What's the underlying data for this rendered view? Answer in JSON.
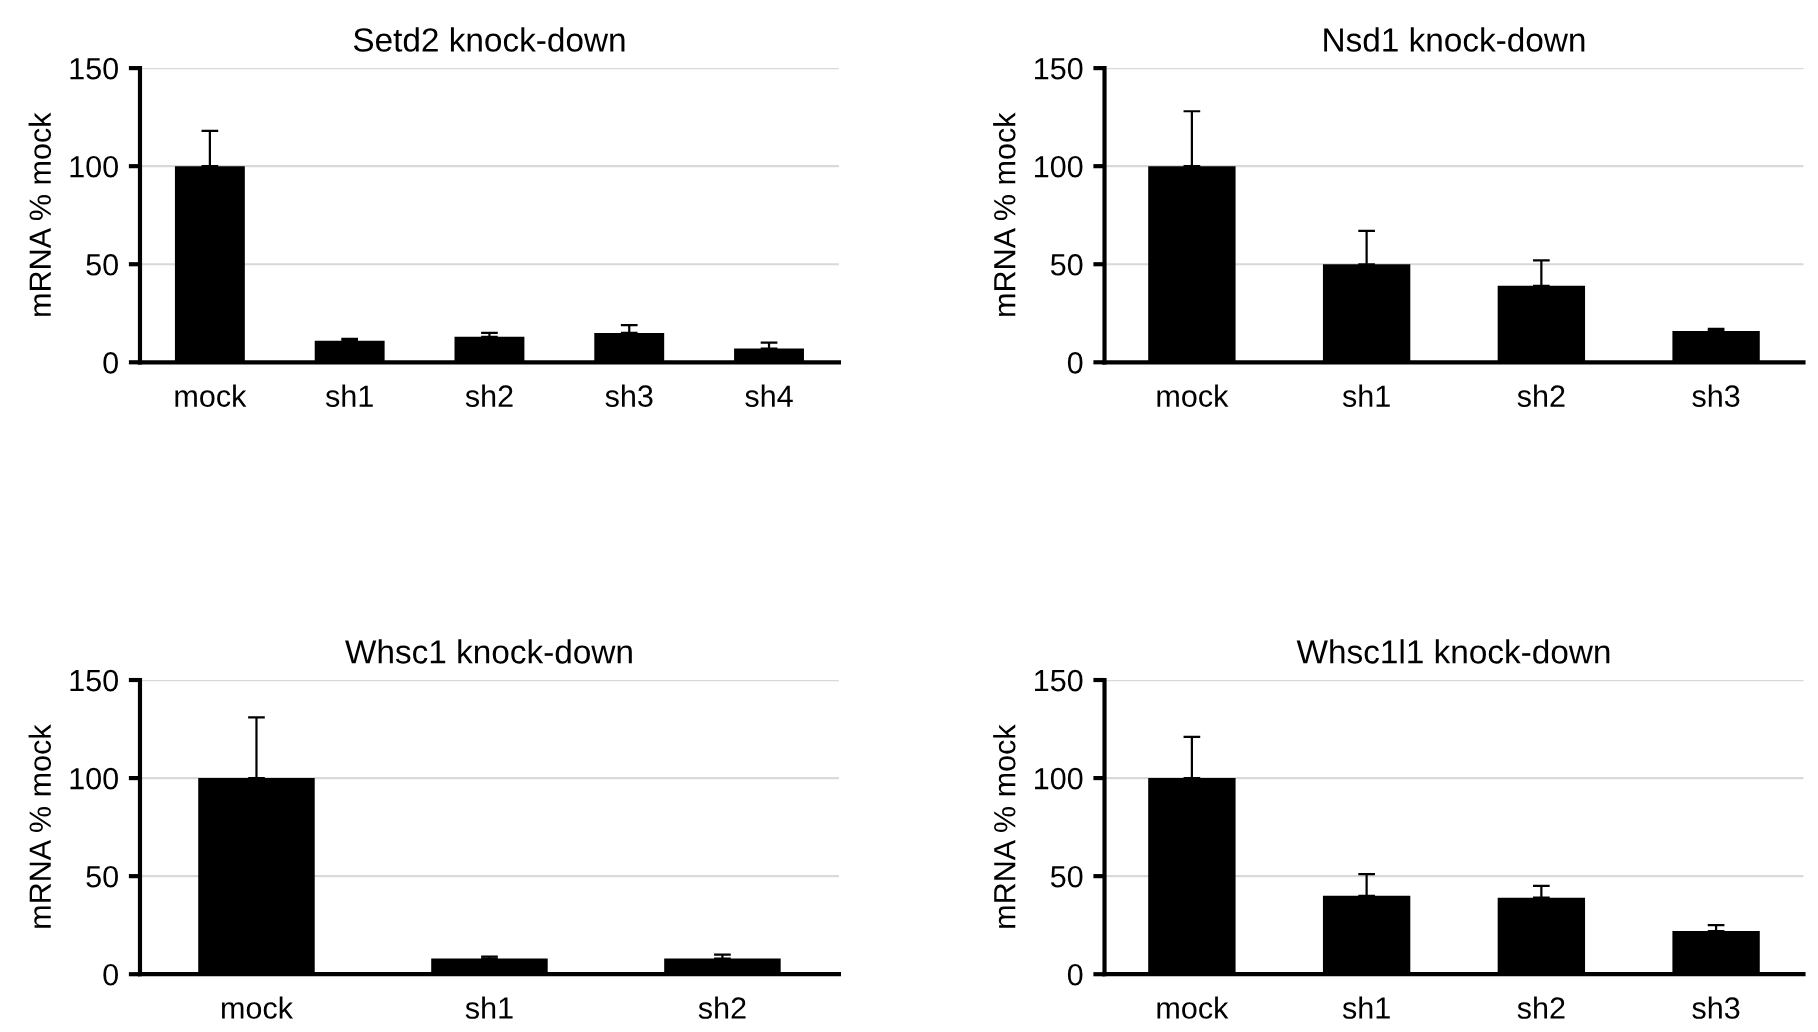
{
  "chart_data": [
    {
      "type": "bar",
      "title": "Setd2 knock-down",
      "ylabel": "mRNA % mock",
      "categories": [
        "mock",
        "sh1",
        "sh2",
        "sh3",
        "sh4"
      ],
      "values": [
        100,
        11,
        13,
        15,
        7
      ],
      "errors": [
        [
          100,
          118
        ],
        [
          11,
          12
        ],
        [
          13,
          15
        ],
        [
          15,
          19
        ],
        [
          7,
          10
        ]
      ],
      "color": "#000000",
      "ylim": [
        0,
        150
      ],
      "yticks": [
        0,
        50,
        100,
        150
      ],
      "grid": "y"
    },
    {
      "type": "bar",
      "title": "Nsd1 knock-down",
      "ylabel": "mRNA % mock",
      "categories": [
        "mock",
        "sh1",
        "sh2",
        "sh3"
      ],
      "values": [
        100,
        50,
        39,
        16
      ],
      "errors": [
        [
          100,
          128
        ],
        [
          50,
          67
        ],
        [
          39,
          52
        ],
        [
          16,
          17
        ]
      ],
      "color": "#000000",
      "ylim": [
        0,
        150
      ],
      "yticks": [
        0,
        50,
        100,
        150
      ],
      "grid": "y"
    },
    {
      "type": "bar",
      "title": "Whsc1 knock-down",
      "ylabel": "mRNA % mock",
      "categories": [
        "mock",
        "sh1",
        "sh2"
      ],
      "values": [
        100,
        8,
        8
      ],
      "errors": [
        [
          100,
          131
        ],
        [
          8,
          9
        ],
        [
          8,
          10
        ]
      ],
      "color": "#000000",
      "ylim": [
        0,
        150
      ],
      "yticks": [
        0,
        50,
        100,
        150
      ],
      "grid": "y"
    },
    {
      "type": "bar",
      "title": "Whsc1l1 knock-down",
      "ylabel": "mRNA % mock",
      "categories": [
        "mock",
        "sh1",
        "sh2",
        "sh3"
      ],
      "values": [
        100,
        40,
        39,
        22
      ],
      "errors": [
        [
          100,
          121
        ],
        [
          40,
          51
        ],
        [
          39,
          45
        ],
        [
          22,
          25
        ]
      ],
      "color": "#000000",
      "ylim": [
        0,
        150
      ],
      "yticks": [
        0,
        50,
        100,
        150
      ],
      "grid": "y"
    }
  ]
}
